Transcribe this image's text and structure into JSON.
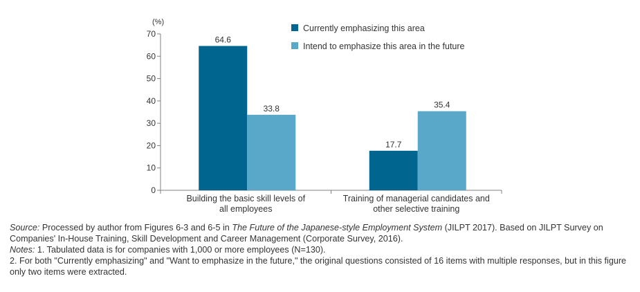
{
  "chart_data": {
    "type": "bar",
    "unit_label": "(%)",
    "categories": [
      [
        "Building the basic skill levels of",
        "all employees"
      ],
      [
        "Training of managerial candidates and",
        "other selective training"
      ]
    ],
    "series": [
      {
        "name": "Currently emphasizing this area",
        "values": [
          64.6,
          17.7
        ],
        "color": "#006690"
      },
      {
        "name": "Intend to emphasize this area in the future",
        "values": [
          33.8,
          35.4
        ],
        "color": "#5aa8c9"
      }
    ],
    "value_labels": [
      [
        "64.6",
        "17.7"
      ],
      [
        "33.8",
        "35.4"
      ]
    ],
    "ylim": [
      0,
      70
    ],
    "yticks": [
      0,
      10,
      20,
      30,
      40,
      50,
      60,
      70
    ],
    "legend_position": "top-right",
    "grid": false
  },
  "notes": {
    "source_label": "Source:",
    "source_text_1": " Processed by author from Figures 6-3 and 6-5 in ",
    "source_title": "The Future of the Japanese-style Employment System",
    "source_text_2": " (JILPT 2017). Based on JILPT Survey on Companies' In-House Training, Skill Development and Career Management (Corporate Survey, 2016).",
    "notes_label": "Notes:",
    "note_1": " 1. Tabulated data is for companies with 1,000 or more employees (N=130).",
    "note_2": "2. For both \"Currently emphasizing\" and \"Want to emphasize in the future,\" the original questions consisted of 16 items with multiple responses, but in this figure only two items were extracted."
  }
}
